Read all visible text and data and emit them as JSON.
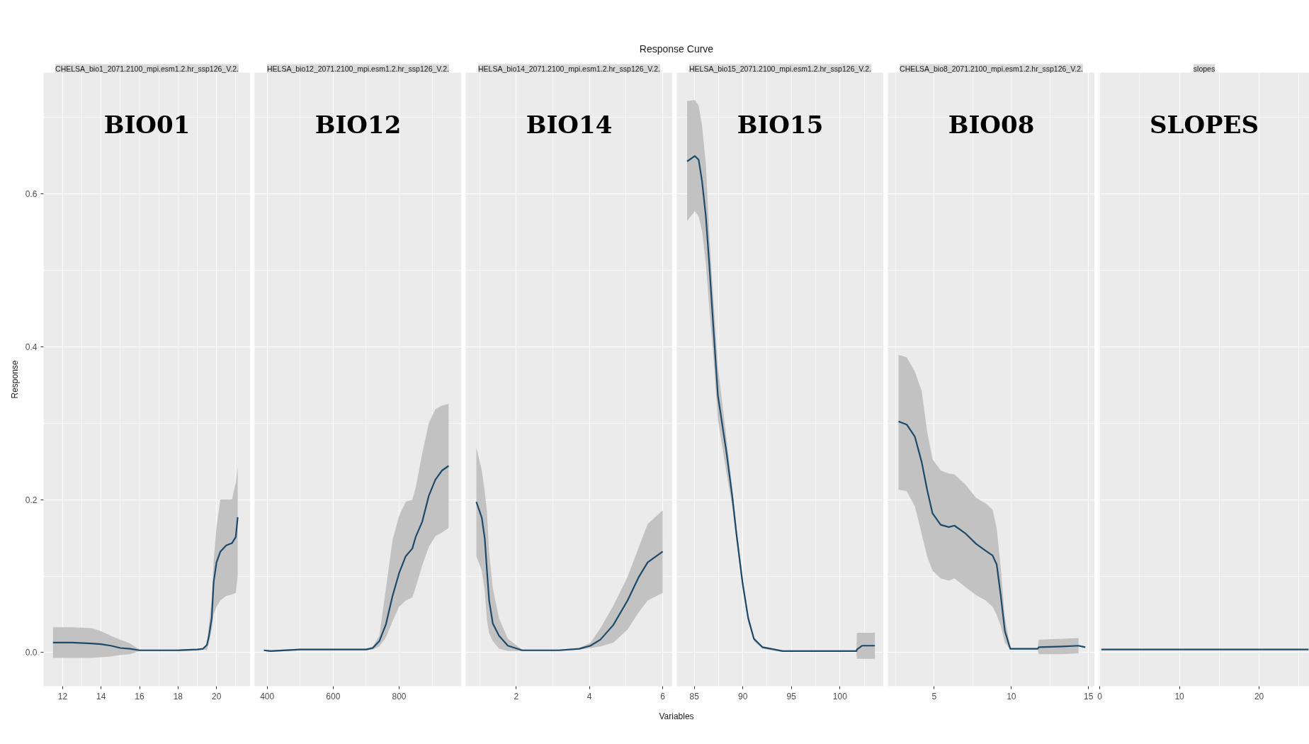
{
  "chart_data": [
    {
      "type": "other",
      "title": "Response Curve",
      "xlabel": "Variables"
    },
    {
      "type": "line",
      "title": "CHELSA_bio1_2071.2100_mpi.esm1.2.hr_ssp126_V.2.",
      "annotations": [
        "BIO01"
      ],
      "ylabel": "Response",
      "grid": true,
      "xlim": [
        11.01,
        21.76
      ],
      "xticks": [
        12,
        14,
        16,
        18,
        20
      ],
      "ylim": [
        -0.044,
        0.758
      ],
      "yticks": [
        {
          "value": 0,
          "label": "0.0"
        },
        0.2,
        0.4,
        0.6
      ],
      "series": [
        {
          "color": "#1d4a6a",
          "x": [
            11.5,
            12.5,
            13.5,
            14,
            14.5,
            15,
            15.5,
            16,
            17,
            18,
            19,
            19.3,
            19.5,
            19.6,
            19.75,
            19.85,
            20,
            20.2,
            20.5,
            20.8,
            21,
            21.1
          ],
          "values": [
            0.013,
            0.013,
            0.012,
            0.011,
            0.009,
            0.006,
            0.005,
            0.003,
            0.003,
            0.003,
            0.004,
            0.005,
            0.01,
            0.021,
            0.045,
            0.092,
            0.118,
            0.132,
            0.14,
            0.143,
            0.151,
            0.177
          ],
          "lower": [
            -0.007,
            -0.007,
            -0.007,
            -0.006,
            -0.005,
            -0.003,
            -0.002,
            0.002,
            0.002,
            0.002,
            0.003,
            0.004,
            0.003,
            0.012,
            0.03,
            0.05,
            0.06,
            0.068,
            0.074,
            0.076,
            0.078,
            0.1
          ],
          "upper": [
            0.033,
            0.033,
            0.032,
            0.028,
            0.022,
            0.017,
            0.012,
            0.004,
            0.004,
            0.004,
            0.005,
            0.006,
            0.012,
            0.035,
            0.07,
            0.12,
            0.165,
            0.2,
            0.2,
            0.2,
            0.222,
            0.242
          ]
        }
      ]
    },
    {
      "type": "line",
      "title": "HELSA_bio12_2071.2100_mpi.esm1.2.hr_ssp126_V.2.",
      "annotations": [
        "BIO12"
      ],
      "tick_labels": "x",
      "grid": true,
      "xlim": [
        362,
        989
      ],
      "xticks": [
        400,
        600,
        800
      ],
      "ylim": [
        -0.044,
        0.758
      ],
      "yticks": [
        0,
        0.2,
        0.4,
        0.6
      ],
      "series": [
        {
          "color": "#1d4a6a",
          "x": [
            390,
            410,
            500,
            600,
            700,
            720,
            740,
            760,
            780,
            800,
            820,
            840,
            850,
            870,
            890,
            910,
            930,
            950
          ],
          "values": [
            0.003,
            0.002,
            0.004,
            0.004,
            0.004,
            0.006,
            0.015,
            0.037,
            0.074,
            0.104,
            0.126,
            0.136,
            0.151,
            0.171,
            0.205,
            0.226,
            0.238,
            0.244
          ],
          "lower": [
            0.002,
            0.001,
            0.003,
            0.003,
            0.003,
            0.004,
            0.008,
            0.02,
            0.041,
            0.06,
            0.068,
            0.072,
            0.085,
            0.114,
            0.138,
            0.152,
            0.157,
            0.163
          ],
          "upper": [
            0.004,
            0.003,
            0.005,
            0.005,
            0.005,
            0.008,
            0.022,
            0.084,
            0.147,
            0.179,
            0.197,
            0.2,
            0.215,
            0.26,
            0.3,
            0.318,
            0.323,
            0.325
          ]
        }
      ]
    },
    {
      "type": "line",
      "title": "HELSA_bio14_2071.2100_mpi.esm1.2.hr_ssp126_V.2.",
      "annotations": [
        "BIO14"
      ],
      "tick_labels": "x",
      "grid": true,
      "xlim": [
        0.62,
        6.27
      ],
      "xticks": [
        2,
        4,
        6
      ],
      "ylim": [
        -0.044,
        0.758
      ],
      "yticks": [
        0,
        0.2,
        0.4,
        0.6
      ],
      "series": [
        {
          "color": "#1d4a6a",
          "x": [
            0.91,
            1.06,
            1.14,
            1.2,
            1.26,
            1.36,
            1.53,
            1.77,
            2.16,
            3.17,
            3.72,
            4.03,
            4.3,
            4.65,
            5.04,
            5.35,
            5.59,
            6
          ],
          "values": [
            0.197,
            0.176,
            0.149,
            0.107,
            0.068,
            0.038,
            0.022,
            0.009,
            0.003,
            0.003,
            0.005,
            0.009,
            0.017,
            0.036,
            0.068,
            0.099,
            0.118,
            0.132
          ],
          "lower": [
            0.126,
            0.107,
            0.08,
            0.042,
            0.025,
            0.015,
            0.005,
            0.002,
            0.002,
            0.002,
            0.004,
            0.006,
            0.008,
            0.013,
            0.03,
            0.053,
            0.068,
            0.078
          ],
          "upper": [
            0.268,
            0.238,
            0.21,
            0.184,
            0.13,
            0.084,
            0.045,
            0.018,
            0.004,
            0.004,
            0.006,
            0.013,
            0.032,
            0.061,
            0.099,
            0.138,
            0.168,
            0.186
          ]
        }
      ]
    },
    {
      "type": "line",
      "title": "HELSA_bio15_2071.2100_mpi.esm1.2.hr_ssp126_V.2.",
      "annotations": [
        "BIO15"
      ],
      "tick_labels": "x",
      "grid": true,
      "xlim": [
        83.2,
        104.5
      ],
      "xticks": [
        85,
        90,
        95,
        100
      ],
      "ylim": [
        -0.044,
        0.758
      ],
      "yticks": [
        0,
        0.2,
        0.4,
        0.6
      ],
      "series": [
        {
          "color": "#1d4a6a",
          "x": [
            84.26,
            85.06,
            85.45,
            85.8,
            86.19,
            86.54,
            86.93,
            87.43,
            88.32,
            88.92,
            89.36,
            89.96,
            90.55,
            91.14,
            92.03,
            94.1,
            101.7,
            101.75,
            102.27,
            103.6
          ],
          "values": [
            0.642,
            0.649,
            0.644,
            0.616,
            0.57,
            0.508,
            0.432,
            0.336,
            0.261,
            0.203,
            0.153,
            0.092,
            0.045,
            0.018,
            0.007,
            0.002,
            0.002,
            0.004,
            0.009,
            0.009
          ],
          "lower": [
            0.564,
            0.577,
            0.57,
            0.551,
            0.508,
            0.451,
            0.393,
            0.305,
            0.234,
            0.19,
            0.145,
            0.085,
            0.04,
            0.015,
            0.005,
            0.001,
            0.001,
            -0.008,
            -0.008,
            -0.008
          ],
          "upper": [
            0.721,
            0.722,
            0.715,
            0.688,
            0.639,
            0.547,
            0.47,
            0.374,
            0.28,
            0.215,
            0.163,
            0.1,
            0.05,
            0.02,
            0.008,
            0.003,
            0.003,
            0.026,
            0.026,
            0.026
          ]
        }
      ]
    },
    {
      "type": "line",
      "title": "CHELSA_bio8_2071.2100_mpi.esm1.2.hr_ssp126_V.2.",
      "annotations": [
        "BIO08"
      ],
      "tick_labels": "x",
      "grid": true,
      "xlim": [
        2.0,
        15.4
      ],
      "xticks": [
        5,
        10,
        15
      ],
      "ylim": [
        -0.044,
        0.758
      ],
      "yticks": [
        0,
        0.2,
        0.4,
        0.6
      ],
      "series": [
        {
          "color": "#1d4a6a",
          "x": [
            2.69,
            3.22,
            3.75,
            4.19,
            4.54,
            4.89,
            5.42,
            5.95,
            6.31,
            7.01,
            7.72,
            8.34,
            8.78,
            9.05,
            9.31,
            9.58,
            9.93,
            11.7,
            11.78,
            13.29,
            14.35,
            14.79
          ],
          "values": [
            0.302,
            0.298,
            0.282,
            0.249,
            0.213,
            0.182,
            0.167,
            0.164,
            0.166,
            0.156,
            0.142,
            0.133,
            0.127,
            0.115,
            0.075,
            0.028,
            0.005,
            0.005,
            0.007,
            0.008,
            0.009,
            0.007
          ],
          "lower": [
            0.213,
            0.211,
            0.191,
            0.155,
            0.126,
            0.107,
            0.097,
            0.094,
            0.097,
            0.086,
            0.075,
            0.068,
            0.06,
            0.049,
            0.035,
            0.013,
            0.004,
            0.004,
            -0.002,
            -0.002,
            -0.001,
            null
          ],
          "upper": [
            0.389,
            0.386,
            0.367,
            0.342,
            0.289,
            0.253,
            0.238,
            0.234,
            0.233,
            0.22,
            0.202,
            0.195,
            0.187,
            0.162,
            0.111,
            0.046,
            0.006,
            0.006,
            0.017,
            0.018,
            0.019,
            null
          ]
        }
      ]
    },
    {
      "type": "line",
      "title": "slopes",
      "annotations": [
        "SLOPES"
      ],
      "tick_labels": "x",
      "grid": true,
      "xlim": [
        -0.1,
        26.3
      ],
      "xticks": [
        0,
        10,
        20
      ],
      "ylim": [
        -0.044,
        0.758
      ],
      "yticks": [
        0,
        0.2,
        0.4,
        0.6
      ],
      "series": [
        {
          "color": "#1d4a6a",
          "x": [
            0.2,
            10,
            20,
            26.2
          ],
          "values": [
            0.004,
            0.004,
            0.004,
            0.004
          ]
        }
      ]
    }
  ]
}
